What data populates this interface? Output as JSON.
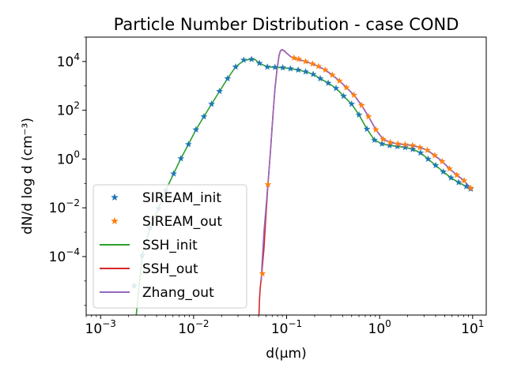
{
  "chart_data": {
    "type": "line",
    "title": "Particle Number Distribution - case COND",
    "xlabel": "d(μm)",
    "ylabel": "dN/d log d (cm⁻³)",
    "xscale": "log",
    "yscale": "log",
    "xlim": [
      0.0007,
      14
    ],
    "ylim": [
      4e-07,
      100000
    ],
    "xticks": [
      {
        "value": 0.001,
        "base": "10",
        "exp": "−3"
      },
      {
        "value": 0.01,
        "base": "10",
        "exp": "−2"
      },
      {
        "value": 0.1,
        "base": "10",
        "exp": "−1"
      },
      {
        "value": 1,
        "base": "10",
        "exp": "0"
      },
      {
        "value": 10,
        "base": "10",
        "exp": "1"
      }
    ],
    "yticks": [
      {
        "value": 0.0001,
        "base": "10",
        "exp": "−4"
      },
      {
        "value": 0.01,
        "base": "10",
        "exp": "−2"
      },
      {
        "value": 1,
        "base": "10",
        "exp": "0"
      },
      {
        "value": 100,
        "base": "10",
        "exp": "2"
      },
      {
        "value": 10000,
        "base": "10",
        "exp": "4"
      }
    ],
    "legend_position": "lower-left",
    "series": [
      {
        "name": "SIREAM_init",
        "kind": "marker",
        "color": "#1f77b4",
        "x": [
          0.0023,
          0.0028,
          0.0034,
          0.0042,
          0.005,
          0.0061,
          0.0073,
          0.0088,
          0.0106,
          0.0129,
          0.0156,
          0.019,
          0.0232,
          0.0283,
          0.0346,
          0.042,
          0.051,
          0.062,
          0.075,
          0.091,
          0.11,
          0.133,
          0.16,
          0.193,
          0.23,
          0.28,
          0.34,
          0.41,
          0.5,
          0.6,
          0.73,
          0.88,
          1.06,
          1.28,
          1.55,
          1.88,
          2.27,
          2.75,
          3.32,
          4.0,
          4.84,
          5.85,
          7.07,
          8.55,
          9.5
        ],
        "y": [
          6.3e-06,
          0.00011,
          0.0015,
          0.0093,
          0.05,
          0.25,
          1.05,
          4.0,
          16,
          55,
          180,
          600,
          2000,
          6000,
          11500,
          12300,
          8500,
          6000,
          5800,
          5600,
          5100,
          4500,
          3800,
          3000,
          2000,
          1300,
          800,
          380,
          180,
          65,
          17,
          6,
          4.2,
          3.6,
          3.3,
          3.0,
          2.5,
          1.8,
          1.0,
          0.55,
          0.3,
          0.17,
          0.11,
          0.075,
          0.06
        ]
      },
      {
        "name": "SIREAM_out",
        "kind": "marker",
        "color": "#ff7f0e",
        "x": [
          0.055,
          0.063,
          0.12,
          0.135,
          0.16,
          0.19,
          0.22,
          0.26,
          0.31,
          0.37,
          0.44,
          0.53,
          0.64,
          0.76,
          0.91,
          1.09,
          1.3,
          1.57,
          1.88,
          2.26,
          2.71,
          3.26,
          3.91,
          4.7,
          5.64,
          6.77,
          8.1,
          9.5
        ],
        "y": [
          2e-05,
          0.09,
          14000,
          12500,
          10000,
          8000,
          6300,
          4500,
          2800,
          1600,
          850,
          420,
          160,
          55,
          16,
          6.5,
          4.8,
          4.2,
          3.9,
          3.6,
          3.0,
          2.3,
          1.4,
          0.8,
          0.4,
          0.22,
          0.13,
          0.065
        ]
      },
      {
        "name": "SSH_init",
        "kind": "line",
        "color": "#2ca02c",
        "x": [
          0.0024,
          0.0028,
          0.0034,
          0.0042,
          0.005,
          0.0061,
          0.0073,
          0.0088,
          0.0106,
          0.0129,
          0.0156,
          0.019,
          0.0232,
          0.0283,
          0.0346,
          0.042,
          0.046,
          0.051,
          0.062,
          0.075,
          0.091,
          0.11,
          0.133,
          0.16,
          0.193,
          0.23,
          0.28,
          0.34,
          0.41,
          0.5,
          0.6,
          0.73,
          0.88,
          1.06,
          1.28,
          1.55,
          1.88,
          2.27,
          2.75,
          3.32,
          4.0,
          4.84,
          5.85,
          7.07,
          8.55,
          10.0
        ],
        "y": [
          3e-07,
          0.00011,
          0.0015,
          0.0093,
          0.05,
          0.25,
          1.05,
          4.0,
          16,
          55,
          180,
          600,
          2000,
          6000,
          11000,
          12500,
          11800,
          8500,
          6000,
          5800,
          5600,
          5100,
          4500,
          3800,
          3000,
          2000,
          1300,
          800,
          380,
          180,
          65,
          17,
          6,
          4.2,
          3.6,
          3.3,
          3.0,
          2.5,
          1.8,
          1.0,
          0.55,
          0.3,
          0.17,
          0.11,
          0.075,
          0.05
        ]
      },
      {
        "name": "SSH_out",
        "kind": "line",
        "color": "#d62728",
        "x": [
          0.0505,
          0.051,
          0.052,
          0.054,
          0.057,
          0.06,
          0.063,
          0.067,
          0.071,
          0.075,
          0.079,
          0.083,
          0.086,
          0.09,
          0.095,
          0.1,
          0.11,
          0.12,
          0.135,
          0.16,
          0.19,
          0.22,
          0.26,
          0.31,
          0.37,
          0.44,
          0.53,
          0.64,
          0.76,
          0.91,
          1.09,
          1.3,
          1.57,
          1.88,
          2.26,
          2.71,
          3.26,
          3.91,
          4.7,
          5.64,
          6.77,
          8.1,
          10.0
        ],
        "y": [
          4e-07,
          1.5e-06,
          5e-06,
          2e-05,
          0.0002,
          0.005,
          0.09,
          2,
          50,
          800,
          5000,
          18000,
          28000,
          30000,
          27000,
          22000,
          16000,
          13500,
          12000,
          10000,
          8000,
          6300,
          4500,
          2800,
          1600,
          850,
          420,
          160,
          55,
          16,
          6.5,
          4.8,
          4.2,
          3.9,
          3.6,
          3.0,
          2.3,
          1.4,
          0.8,
          0.4,
          0.22,
          0.13,
          0.05
        ]
      },
      {
        "name": "Zhang_out",
        "kind": "line",
        "color": "#9467bd",
        "x": [
          0.0535,
          0.054,
          0.055,
          0.057,
          0.06,
          0.063,
          0.067,
          0.071,
          0.075,
          0.079,
          0.083,
          0.086,
          0.089,
          0.094,
          0.1,
          0.11,
          0.12,
          0.135,
          0.16,
          0.19,
          0.22,
          0.26,
          0.31,
          0.37,
          0.44,
          0.53,
          0.64,
          0.76,
          0.91,
          1.09,
          1.3,
          1.57,
          1.88,
          2.26,
          2.71,
          3.26,
          3.91,
          4.7,
          5.64,
          6.77,
          8.1,
          10.0
        ],
        "y": [
          1e-05,
          3e-05,
          0.0001,
          0.001,
          0.01,
          0.1,
          2,
          50,
          800,
          5000,
          18000,
          28000,
          31000,
          27000,
          22000,
          16000,
          13500,
          12000,
          10000,
          8000,
          6300,
          4500,
          2800,
          1600,
          850,
          420,
          160,
          55,
          16,
          6.5,
          4.8,
          4.2,
          3.9,
          3.6,
          3.0,
          2.3,
          1.4,
          0.8,
          0.4,
          0.22,
          0.13,
          0.05
        ]
      }
    ]
  }
}
